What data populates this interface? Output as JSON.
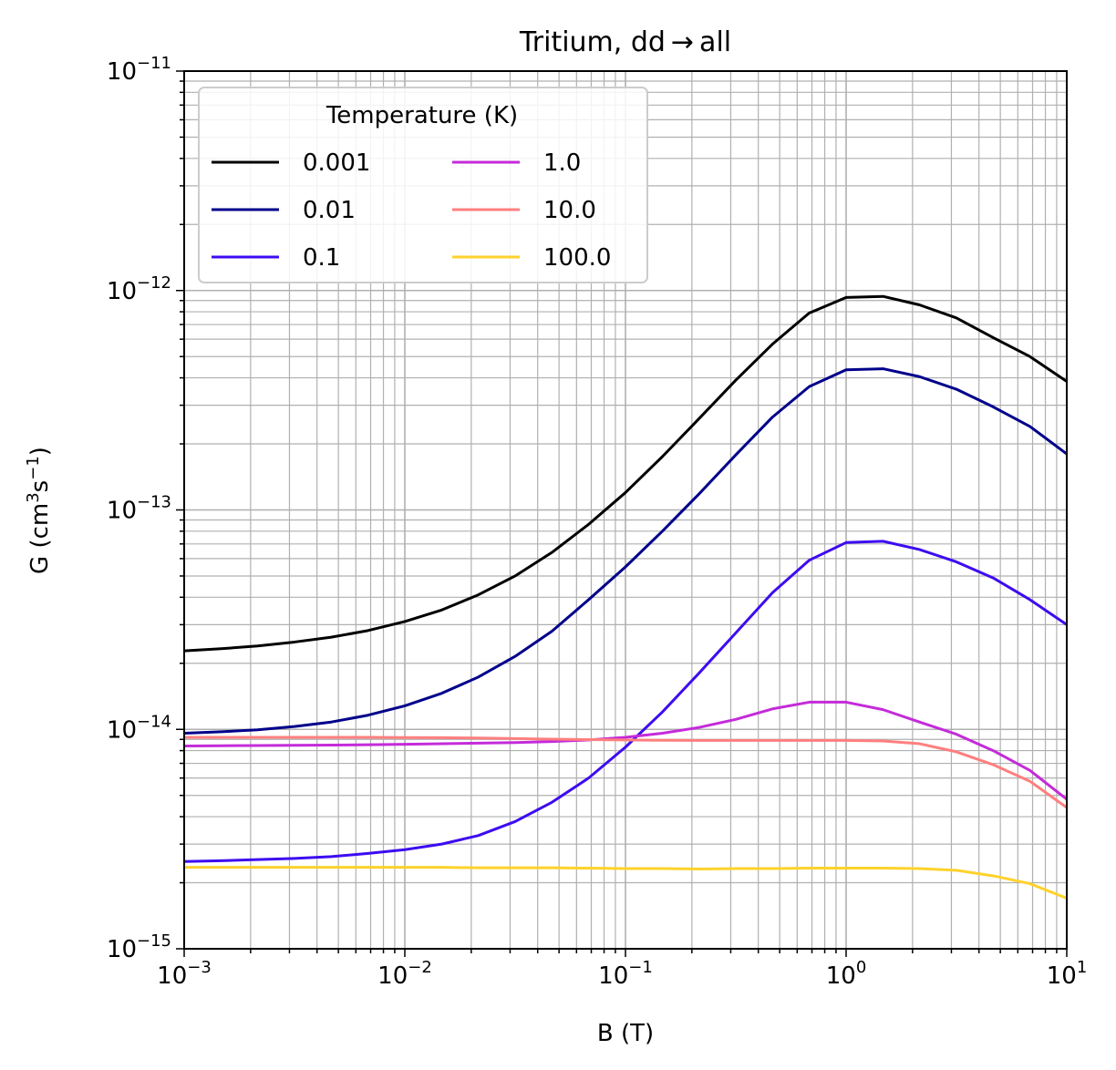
{
  "chart_data": {
    "type": "line",
    "title": "Tritium, dd → all",
    "xlabel": "B (T)",
    "ylabel_base": "G (cm",
    "ylabel_sup1": "3",
    "ylabel_mid": "s",
    "ylabel_sup2": "−1",
    "ylabel_end": ")",
    "xscale": "log",
    "yscale": "log",
    "xlim": [
      0.001,
      10
    ],
    "ylim": [
      1e-15,
      1e-11
    ],
    "grid": "major and minor",
    "x_ticks": [
      {
        "base": "10",
        "exp": "−3"
      },
      {
        "base": "10",
        "exp": "−2"
      },
      {
        "base": "10",
        "exp": "−1"
      },
      {
        "base": "10",
        "exp": "0"
      },
      {
        "base": "10",
        "exp": "1"
      }
    ],
    "y_ticks": [
      {
        "base": "10",
        "exp": "−15"
      },
      {
        "base": "10",
        "exp": "−14"
      },
      {
        "base": "10",
        "exp": "−13"
      },
      {
        "base": "10",
        "exp": "−12"
      },
      {
        "base": "10",
        "exp": "−11"
      }
    ],
    "legend": {
      "title": "Temperature (K)",
      "location": "upper-left",
      "columns": 2
    },
    "x": [
      0.001,
      0.00147,
      0.00215,
      0.00316,
      0.00464,
      0.00681,
      0.01,
      0.0147,
      0.0215,
      0.0316,
      0.0464,
      0.0681,
      0.1,
      0.147,
      0.215,
      0.316,
      0.464,
      0.681,
      1.0,
      1.47,
      2.15,
      3.16,
      4.64,
      6.81,
      10.0
    ],
    "series": [
      {
        "name": "0.001",
        "color": "#000000",
        "values": [
          2.28e-14,
          2.33e-14,
          2.4e-14,
          2.5e-14,
          2.63e-14,
          2.82e-14,
          3.1e-14,
          3.5e-14,
          4.1e-14,
          5e-14,
          6.4e-14,
          8.6e-14,
          1.2e-13,
          1.75e-13,
          2.6e-13,
          3.9e-13,
          5.7e-13,
          7.9e-13,
          9.3e-13,
          9.4e-13,
          8.6e-13,
          7.5e-13,
          6.1e-13,
          5e-13,
          3.85e-13
        ]
      },
      {
        "name": "0.01",
        "color": "#00008b",
        "values": [
          9.6e-15,
          9.75e-15,
          9.95e-15,
          1.03e-14,
          1.08e-14,
          1.16e-14,
          1.28e-14,
          1.46e-14,
          1.73e-14,
          2.15e-14,
          2.8e-14,
          3.9e-14,
          5.5e-14,
          8e-14,
          1.18e-13,
          1.78e-13,
          2.65e-13,
          3.65e-13,
          4.35e-13,
          4.4e-13,
          4.05e-13,
          3.55e-13,
          2.95e-13,
          2.4e-13,
          1.8e-13
        ]
      },
      {
        "name": "0.1",
        "color": "#3d0cf0",
        "values": [
          2.5e-15,
          2.52e-15,
          2.55e-15,
          2.58e-15,
          2.63e-15,
          2.72e-15,
          2.83e-15,
          3e-15,
          3.28e-15,
          3.8e-15,
          4.65e-15,
          6e-15,
          8.3e-15,
          1.2e-14,
          1.8e-14,
          2.75e-14,
          4.2e-14,
          5.9e-14,
          7.1e-14,
          7.2e-14,
          6.6e-14,
          5.8e-14,
          4.9e-14,
          3.9e-14,
          3e-14
        ]
      },
      {
        "name": "1.0",
        "color": "#c42bd9",
        "values": [
          8.4e-15,
          8.42e-15,
          8.44e-15,
          8.46e-15,
          8.48e-15,
          8.51e-15,
          8.55e-15,
          8.6e-15,
          8.65e-15,
          8.7e-15,
          8.8e-15,
          8.95e-15,
          9.2e-15,
          9.6e-15,
          1.02e-14,
          1.11e-14,
          1.24e-14,
          1.33e-14,
          1.33e-14,
          1.23e-14,
          1.08e-14,
          9.5e-15,
          8e-15,
          6.5e-15,
          4.8e-15
        ]
      },
      {
        "name": "10.0",
        "color": "#ff7f7f",
        "values": [
          9.2e-15,
          9.2e-15,
          9.2e-15,
          9.2e-15,
          9.2e-15,
          9.2e-15,
          9.18e-15,
          9.16e-15,
          9.13e-15,
          9.08e-15,
          9.02e-15,
          8.98e-15,
          8.95e-15,
          8.92e-15,
          8.9e-15,
          8.9e-15,
          8.9e-15,
          8.9e-15,
          8.9e-15,
          8.85e-15,
          8.6e-15,
          7.9e-15,
          6.9e-15,
          5.8e-15,
          4.4e-15
        ]
      },
      {
        "name": "100.0",
        "color": "#ffd22b",
        "values": [
          2.35e-15,
          2.35e-15,
          2.35e-15,
          2.35e-15,
          2.35e-15,
          2.35e-15,
          2.35e-15,
          2.35e-15,
          2.34e-15,
          2.34e-15,
          2.34e-15,
          2.33e-15,
          2.32e-15,
          2.32e-15,
          2.31e-15,
          2.32e-15,
          2.32e-15,
          2.33e-15,
          2.33e-15,
          2.33e-15,
          2.32e-15,
          2.28e-15,
          2.15e-15,
          1.98e-15,
          1.7e-15
        ]
      }
    ]
  }
}
